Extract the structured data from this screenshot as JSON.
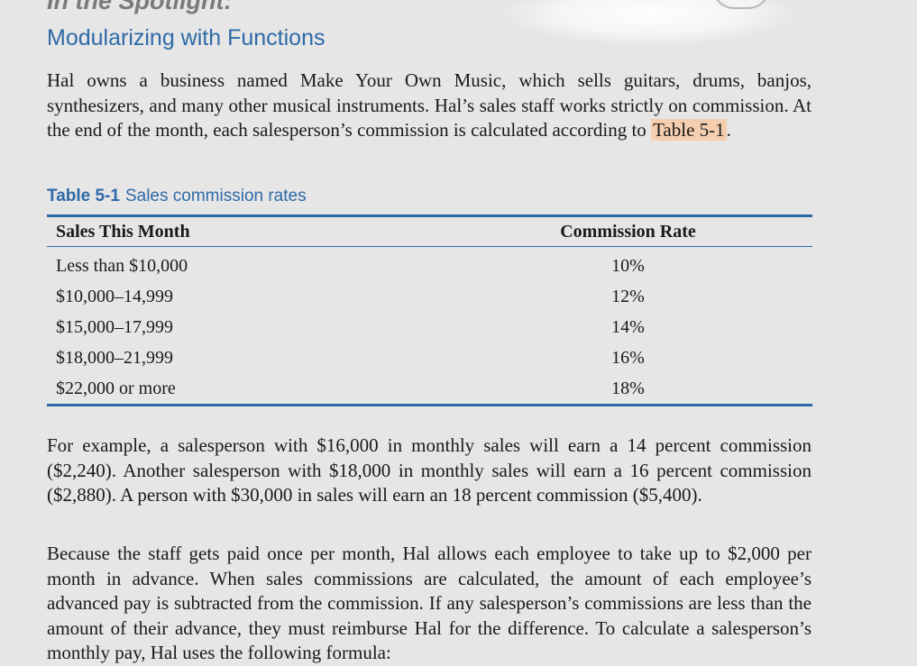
{
  "header": {
    "kicker": "In the Spotlight:",
    "title": "Modularizing with Functions"
  },
  "intro": {
    "text_before": "Hal owns a business named Make Your Own Music, which sells guitars, drums, banjos, synthesizers, and many other musical instruments. Hal’s sales staff works strictly on commission. At the end of the month, each salesperson’s commission is calculated according to ",
    "table_ref": "Table 5-1",
    "text_after": "."
  },
  "table": {
    "caption_label": "Table 5-1",
    "caption_text": "Sales commission rates",
    "headers": [
      "Sales This Month",
      "Commission Rate"
    ],
    "rows": [
      [
        "Less than $10,000",
        "10%"
      ],
      [
        "$10,000–14,999",
        "12%"
      ],
      [
        "$15,000–17,999",
        "14%"
      ],
      [
        "$18,000–21,999",
        "16%"
      ],
      [
        "$22,000 or more",
        "18%"
      ]
    ]
  },
  "paragraphs": [
    "For example, a salesperson with $16,000 in monthly sales will earn a 14 percent commission ($2,240). Another salesperson with $18,000 in monthly sales will earn a 16 percent commission ($2,880). A person with $30,000 in sales will earn an 18 percent commission ($5,400).",
    "Because the staff gets paid once per month, Hal allows each employee to take up to $2,000 per month in advance. When sales commissions are calculated, the amount of each employee’s advanced pay is subtracted from the commission. If any salesperson’s commissions are less than the amount of their advance, they must reimburse Hal for the difference. To calculate a salesperson’s monthly pay, Hal uses the following formula:"
  ],
  "icons": {
    "spotlight": "spotlight-icon"
  }
}
